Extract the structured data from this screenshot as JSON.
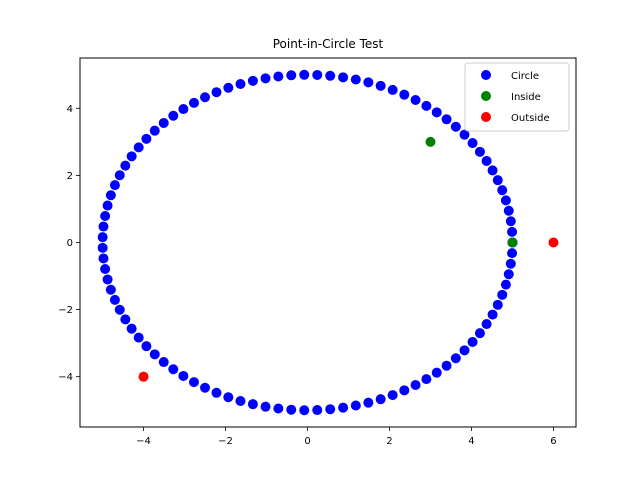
{
  "chart_data": {
    "type": "scatter",
    "title": "Point-in-Circle Test",
    "xlabel": "",
    "ylabel": "",
    "xlim": [
      -5.55,
      6.55
    ],
    "ylim": [
      -5.5,
      5.5
    ],
    "xticks": [
      -4,
      -2,
      0,
      2,
      4,
      6
    ],
    "yticks": [
      -4,
      -2,
      0,
      2,
      4
    ],
    "grid": false,
    "legend_position": "top-right",
    "series": [
      {
        "name": "Circle",
        "color": "#0000ff",
        "shape": "circle-outline",
        "center": [
          0,
          0
        ],
        "radius": 5,
        "num_points": 100
      },
      {
        "name": "Inside",
        "color": "#008000",
        "points": [
          [
            3,
            3
          ],
          [
            5,
            0
          ]
        ]
      },
      {
        "name": "Outside",
        "color": "#ff0000",
        "points": [
          [
            6,
            0
          ],
          [
            -4,
            -4
          ]
        ]
      }
    ]
  }
}
